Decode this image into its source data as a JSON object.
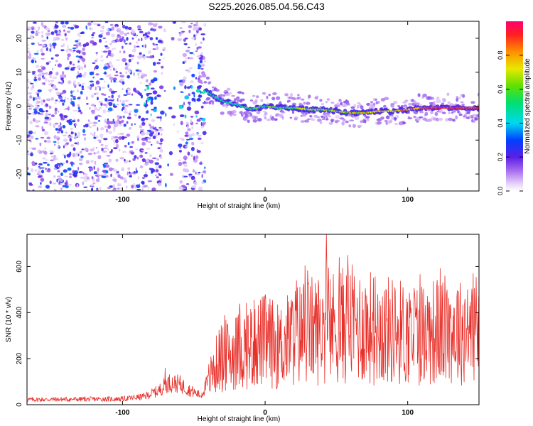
{
  "title": "S225.2026.085.04.56.C43",
  "chart_data": [
    {
      "type": "heatmap",
      "xlabel": "Height of straight line (km)",
      "ylabel": "Frequency (Hz)",
      "xlim": [
        -167,
        150
      ],
      "ylim": [
        -25,
        25
      ],
      "xticks": [
        -100,
        0,
        100
      ],
      "yticks": [
        -20,
        -10,
        0,
        10,
        20
      ],
      "colorbar": {
        "label": "Normalized spectral amplitude",
        "range": [
          0,
          1
        ],
        "ticks": [
          "0.0",
          "0.2",
          "0.4",
          "0.6",
          "0.8"
        ],
        "tick_values": [
          0,
          0.2,
          0.4,
          0.6,
          0.8
        ]
      },
      "ridge": {
        "x": [
          -42,
          -30,
          -20,
          -10,
          0,
          10,
          20,
          30,
          40,
          50,
          60,
          70,
          80,
          90,
          100,
          110,
          120,
          130,
          140,
          150
        ],
        "freq": [
          4.5,
          1.5,
          0.5,
          -1.0,
          0.0,
          -0.5,
          -0.5,
          -1.0,
          -1.0,
          -1.5,
          -2.0,
          -2.0,
          -1.5,
          -1.5,
          -1.0,
          -0.5,
          -0.5,
          -0.5,
          -0.5,
          -0.5
        ]
      },
      "noise_region_x": [
        -167,
        -42
      ]
    },
    {
      "type": "line",
      "xlabel": "Height of straight line (km)",
      "ylabel": "SNR (10 * v/v)",
      "xlim": [
        -167,
        150
      ],
      "ylim": [
        0,
        740
      ],
      "xticks": [
        -100,
        0,
        100
      ],
      "yticks": [
        0,
        200,
        400,
        600
      ],
      "series": [
        {
          "name": "SNR",
          "color": "#e8302a",
          "baseline": {
            "x": [
              -167,
              -100,
              -85,
              -75,
              -68,
              -60,
              -52,
              -45,
              -32,
              -20,
              -10,
              0,
              10,
              20,
              30,
              40,
              50,
              60,
              70,
              80,
              100,
              120,
              140,
              150
            ],
            "y": [
              22,
              25,
              35,
              60,
              95,
              90,
              60,
              40,
              200,
              230,
              260,
              280,
              250,
              300,
              320,
              330,
              340,
              350,
              340,
              330,
              310,
              320,
              330,
              320
            ]
          },
          "peaks": [
            {
              "x": 43,
              "y": 740
            },
            {
              "x": 52,
              "y": 640
            },
            {
              "x": 58,
              "y": 650
            },
            {
              "x": 28,
              "y": 605
            },
            {
              "x": 22,
              "y": 540
            },
            {
              "x": 148,
              "y": 555
            },
            {
              "x": 137,
              "y": 530
            },
            {
              "x": 142,
              "y": 500
            },
            {
              "x": -70,
              "y": 160
            },
            {
              "x": -7,
              "y": 415
            }
          ]
        }
      ]
    }
  ]
}
